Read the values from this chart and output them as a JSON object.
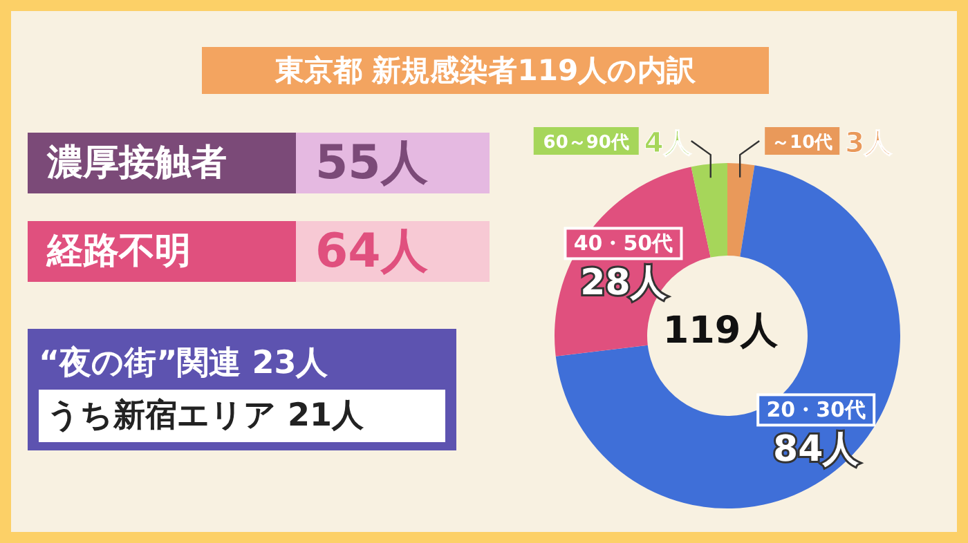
{
  "chart_data": {
    "type": "donut",
    "title": "東京都 新規感染者119人の内訳",
    "categories": [
      "～10代",
      "20・30代",
      "40・50代",
      "60～90代"
    ],
    "values": [
      3,
      84,
      28,
      4
    ],
    "colors": [
      "#e9995a",
      "#3f6fd8",
      "#e0507e",
      "#a6d65a"
    ],
    "value_labels": [
      "3人",
      "84人",
      "28人",
      "4人"
    ],
    "annotations": [
      "119人",
      "濃厚接触者",
      "55人",
      "経路不明",
      "64人",
      "“夜の街”関連 23人",
      "うち新宿エリア 21人"
    ]
  }
}
